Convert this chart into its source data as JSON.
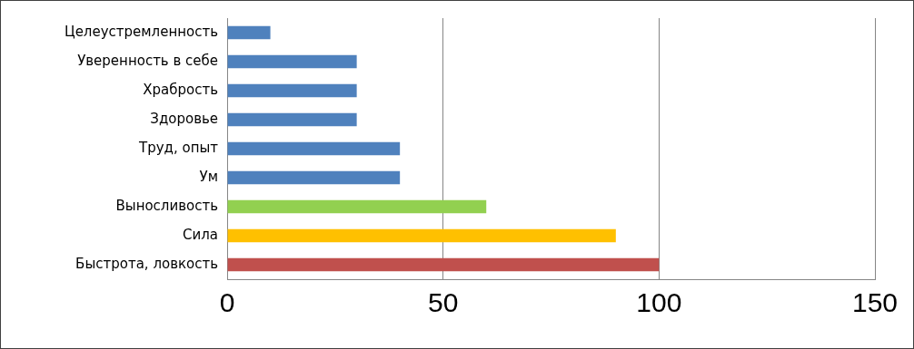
{
  "chart_data": {
    "type": "bar",
    "orientation": "horizontal",
    "categories": [
      "Целеустремленность",
      "Уверенность в себе",
      "Храбрость",
      "Здоровье",
      "Труд, опыт",
      "Ум",
      "Выносливость",
      "Сила",
      "Быстрота, ловкость"
    ],
    "values": [
      10,
      30,
      30,
      30,
      40,
      40,
      60,
      90,
      100
    ],
    "colors": [
      "#4f81bd",
      "#4f81bd",
      "#4f81bd",
      "#4f81bd",
      "#4f81bd",
      "#4f81bd",
      "#92d050",
      "#ffc000",
      "#c0504d"
    ],
    "xlim": [
      0,
      150
    ],
    "xticks": [
      0,
      50,
      100,
      150
    ],
    "grid": "x",
    "legend": false
  }
}
